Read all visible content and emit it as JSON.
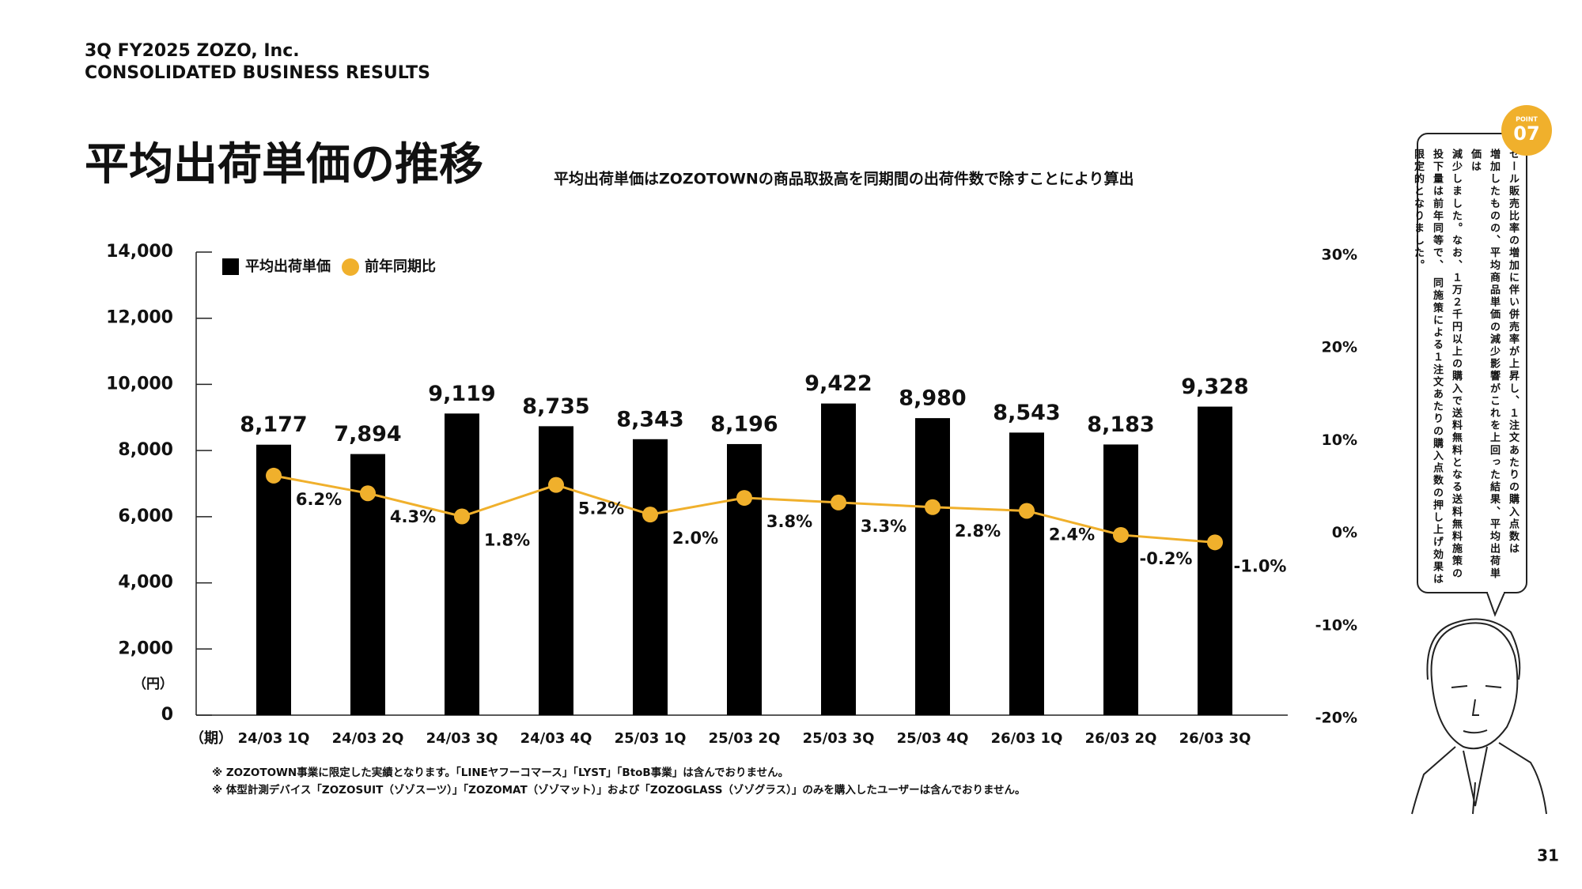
{
  "header": {
    "line1": "3Q FY2025 ZOZO, Inc.",
    "line2": "CONSOLIDATED BUSINESS RESULTS"
  },
  "title": "平均出荷単価の推移",
  "subtitle": "平均出荷単価はZOZOTOWNの商品取扱高を同期間の出荷件数で除すことにより算出",
  "chart_data": {
    "type": "bar-line",
    "y_unit": "（円）",
    "x_unit": "（期）",
    "categories": [
      "24/03 1Q",
      "24/03 2Q",
      "24/03 3Q",
      "24/03 4Q",
      "25/03 1Q",
      "25/03 2Q",
      "25/03 3Q",
      "25/03 4Q",
      "26/03 1Q",
      "26/03 2Q",
      "26/03 3Q"
    ],
    "series": [
      {
        "name": "平均出荷単価",
        "type": "bar",
        "color": "#000000",
        "values": [
          8177,
          7894,
          9119,
          8735,
          8343,
          8196,
          9422,
          8980,
          8543,
          8183,
          9328
        ],
        "value_labels": [
          "8,177",
          "7,894",
          "9,119",
          "8,735",
          "8,343",
          "8,196",
          "9,422",
          "8,980",
          "8,543",
          "8,183",
          "9,328"
        ]
      },
      {
        "name": "前年同期比",
        "type": "line",
        "axis": "y2",
        "color": "#f0b02c",
        "values": [
          6.2,
          4.3,
          1.8,
          5.2,
          2.0,
          3.8,
          3.3,
          2.8,
          2.4,
          -0.2,
          -1.0
        ],
        "value_labels": [
          "6.2%",
          "4.3%",
          "1.8%",
          "5.2%",
          "2.0%",
          "3.8%",
          "3.3%",
          "2.8%",
          "2.4%",
          "-0.2%",
          "-1.0%"
        ]
      }
    ],
    "ylim": [
      0,
      14000
    ],
    "yticks": [
      0,
      {
        "value": 2000,
        "label": "2,000"
      },
      {
        "value": 4000,
        "label": "4,000"
      },
      {
        "value": 6000,
        "label": "6,000"
      },
      {
        "value": 8000,
        "label": "8,000"
      },
      {
        "value": 10000,
        "label": "10,000"
      },
      {
        "value": 12000,
        "label": "12,000"
      },
      {
        "value": 14000,
        "label": "14,000"
      }
    ],
    "y2lim": [
      -20,
      30
    ],
    "y2ticks": [
      {
        "value": -20,
        "label": "-20%"
      },
      {
        "value": -10,
        "label": "-10%"
      },
      {
        "value": 0,
        "label": "0%"
      },
      {
        "value": 10,
        "label": "10%"
      },
      {
        "value": 20,
        "label": "20%"
      },
      {
        "value": 30,
        "label": "30%"
      }
    ],
    "legend": "top-left"
  },
  "footnotes": [
    "※ ZOZOTOWN事業に限定した実績となります。「LINEヤフーコマース」「LYST」「BtoB事業」は含んでおりません。",
    "※ 体型計測デバイス「ZOZOSUIT（ゾゾスーツ）」「ZOZOMAT（ゾゾマット）」および「ZOZOGLASS（ゾゾグラス）」のみを購入したユーザーは含んでおりません。"
  ],
  "point": {
    "label": "POINT",
    "number": "07"
  },
  "bubble_lines": [
    "セール販売比率の増加に伴い併売率が上昇し、１注文あたりの購入点数は",
    "増加したものの、平均商品単価の減少影響がこれを上回った結果、平均出荷単価は",
    "減少しました。なお、１万２千円以上の購入で送料無料となる送料無料施策の",
    "投下量は前年同等で、 同施策による１注文あたりの購入点数の押し上げ効果は",
    "限定的となりました。"
  ],
  "page_number": "31"
}
